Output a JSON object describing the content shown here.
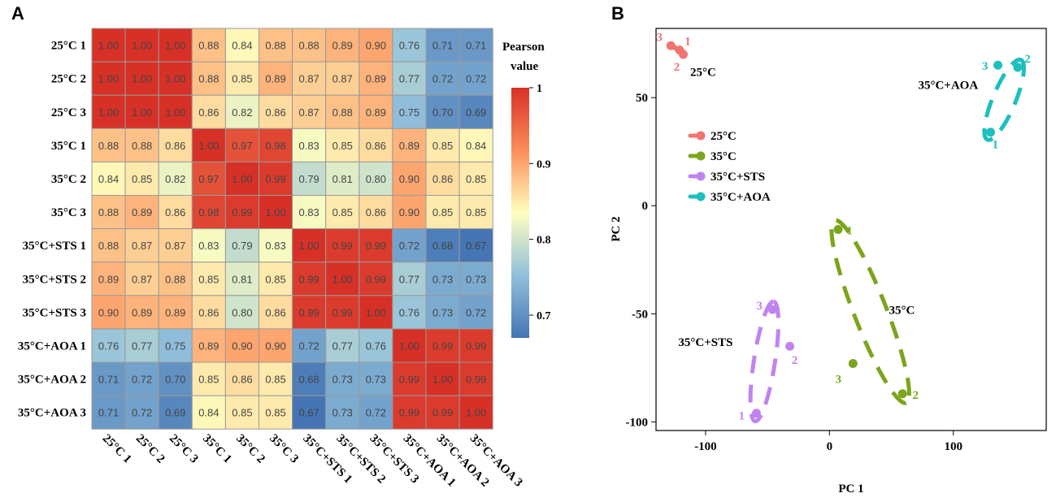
{
  "chart_data": [
    {
      "type": "heatmap",
      "panel_label": "A",
      "rows": [
        "25°C 1",
        "25°C 2",
        "25°C 3",
        "35°C 1",
        "35°C 2",
        "35°C 3",
        "35°C+STS 1",
        "35°C+STS 2",
        "35°C+STS 3",
        "35°C+AOA 1",
        "35°C+AOA 2",
        "35°C+AOA 3"
      ],
      "columns": [
        "25°C 1",
        "25°C 2",
        "25°C 3",
        "35°C 1",
        "35°C 2",
        "35°C 3",
        "35°C+STS 1",
        "35°C+STS 2",
        "35°C+STS 3",
        "35°C+AOA 1",
        "35°C+AOA 2",
        "35°C+AOA 3"
      ],
      "values": [
        [
          1.0,
          1.0,
          1.0,
          0.88,
          0.84,
          0.88,
          0.88,
          0.89,
          0.9,
          0.76,
          0.71,
          0.71
        ],
        [
          1.0,
          1.0,
          1.0,
          0.88,
          0.85,
          0.89,
          0.87,
          0.87,
          0.89,
          0.77,
          0.72,
          0.72
        ],
        [
          1.0,
          1.0,
          1.0,
          0.86,
          0.82,
          0.86,
          0.87,
          0.88,
          0.89,
          0.75,
          0.7,
          0.69
        ],
        [
          0.88,
          0.88,
          0.86,
          1.0,
          0.97,
          0.98,
          0.83,
          0.85,
          0.86,
          0.89,
          0.85,
          0.84
        ],
        [
          0.84,
          0.85,
          0.82,
          0.97,
          1.0,
          0.99,
          0.79,
          0.81,
          0.8,
          0.9,
          0.86,
          0.85
        ],
        [
          0.88,
          0.89,
          0.86,
          0.98,
          0.99,
          1.0,
          0.83,
          0.85,
          0.86,
          0.9,
          0.85,
          0.85
        ],
        [
          0.88,
          0.87,
          0.87,
          0.83,
          0.79,
          0.83,
          1.0,
          0.99,
          0.99,
          0.72,
          0.68,
          0.67
        ],
        [
          0.89,
          0.87,
          0.88,
          0.85,
          0.81,
          0.85,
          0.99,
          1.0,
          0.99,
          0.77,
          0.73,
          0.73
        ],
        [
          0.9,
          0.89,
          0.89,
          0.86,
          0.8,
          0.86,
          0.99,
          0.99,
          1.0,
          0.76,
          0.73,
          0.72
        ],
        [
          0.76,
          0.77,
          0.75,
          0.89,
          0.9,
          0.9,
          0.72,
          0.77,
          0.76,
          1.0,
          0.99,
          0.99
        ],
        [
          0.71,
          0.72,
          0.7,
          0.85,
          0.86,
          0.85,
          0.68,
          0.73,
          0.73,
          0.99,
          1.0,
          0.99
        ],
        [
          0.71,
          0.72,
          0.69,
          0.84,
          0.85,
          0.85,
          0.67,
          0.73,
          0.72,
          0.99,
          0.99,
          1.0
        ]
      ],
      "legend_title": [
        "Pearson",
        "value"
      ],
      "legend_ticks": [
        "1",
        "0.9",
        "0.8",
        "0.7"
      ],
      "color_range": [
        0.67,
        1.0
      ],
      "colors": {
        "low": "#4575b4",
        "lowmid": "#91bfdb",
        "mid": "#ffffbf",
        "highmid": "#fc8d59",
        "high": "#d73027",
        "grid": "#9a9a9a"
      }
    },
    {
      "type": "scatter",
      "panel_label": "B",
      "xlabel": "PC 1",
      "ylabel": "PC 2",
      "xlim": [
        -140,
        175
      ],
      "ylim": [
        -104,
        82
      ],
      "xticks": [
        -100,
        0,
        100
      ],
      "yticks": [
        50,
        0,
        -50,
        -100
      ],
      "series": [
        {
          "name": "25°C",
          "color": "#f07470",
          "ellipse_dashed": false,
          "points": [
            {
              "x": -128,
              "y": 74,
              "label": "3"
            },
            {
              "x": -121,
              "y": 72,
              "label": "1"
            },
            {
              "x": -118,
              "y": 70,
              "label": "2"
            }
          ],
          "group_label": "25°C"
        },
        {
          "name": "35°C",
          "color": "#7aa51c",
          "ellipse_dashed": true,
          "points": [
            {
              "x": 7,
              "y": -11,
              "label": "1"
            },
            {
              "x": 59,
              "y": -87,
              "label": "2"
            },
            {
              "x": 19,
              "y": -73,
              "label": "3"
            }
          ],
          "group_label": "35°C"
        },
        {
          "name": "35°C+STS",
          "color": "#c084f0",
          "ellipse_dashed": true,
          "points": [
            {
              "x": -59,
              "y": -96,
              "label": "1"
            },
            {
              "x": -32,
              "y": -65,
              "label": "2"
            },
            {
              "x": -46,
              "y": -48,
              "label": "3"
            }
          ],
          "group_label": "35°C+STS"
        },
        {
          "name": "35°C+AOA",
          "color": "#1dbfbf",
          "ellipse_dashed": true,
          "points": [
            {
              "x": 130,
              "y": 34,
              "label": "1"
            },
            {
              "x": 152,
              "y": 64,
              "label": "2"
            },
            {
              "x": 136,
              "y": 65,
              "label": "3"
            }
          ],
          "group_label": "35°C+AOA"
        }
      ]
    }
  ]
}
